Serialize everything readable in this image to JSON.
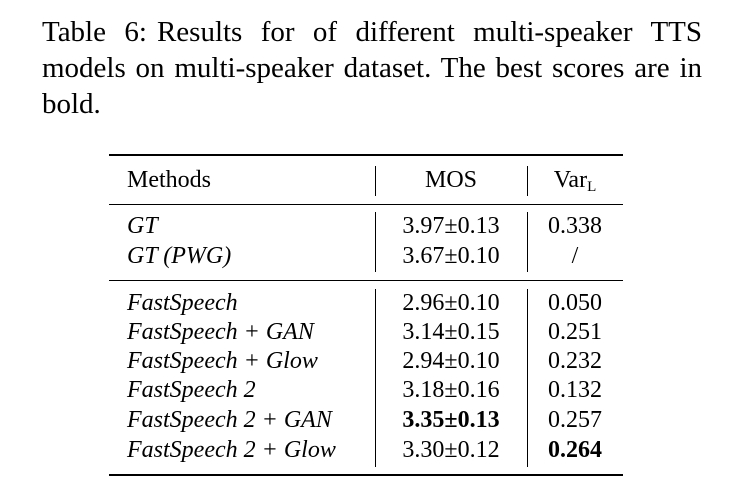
{
  "caption": {
    "label": "Table 6:",
    "text": "Results for of different multi-speaker TTS models on multi-speaker dataset. The best scores are in bold."
  },
  "table": {
    "headers": {
      "methods": "Methods",
      "mos": "MOS",
      "var_main": "Var",
      "var_sub": "L"
    },
    "groups": [
      [
        {
          "method": "GT",
          "mos": "3.97±0.13",
          "var": "0.338"
        },
        {
          "method": "GT (PWG)",
          "mos": "3.67±0.10",
          "var": "/"
        }
      ],
      [
        {
          "method": "FastSpeech",
          "mos": "2.96±0.10",
          "var": "0.050"
        },
        {
          "method": "FastSpeech + GAN",
          "mos": "3.14±0.15",
          "var": "0.251"
        },
        {
          "method": "FastSpeech + Glow",
          "mos": "2.94±0.10",
          "var": "0.232"
        },
        {
          "method": "FastSpeech 2",
          "mos": "3.18±0.16",
          "var": "0.132"
        },
        {
          "method": "FastSpeech 2 + GAN",
          "mos": "3.35±0.13",
          "var": "0.257"
        },
        {
          "method": "FastSpeech 2 + Glow",
          "mos": "3.30±0.12",
          "var": "0.264"
        }
      ]
    ]
  }
}
